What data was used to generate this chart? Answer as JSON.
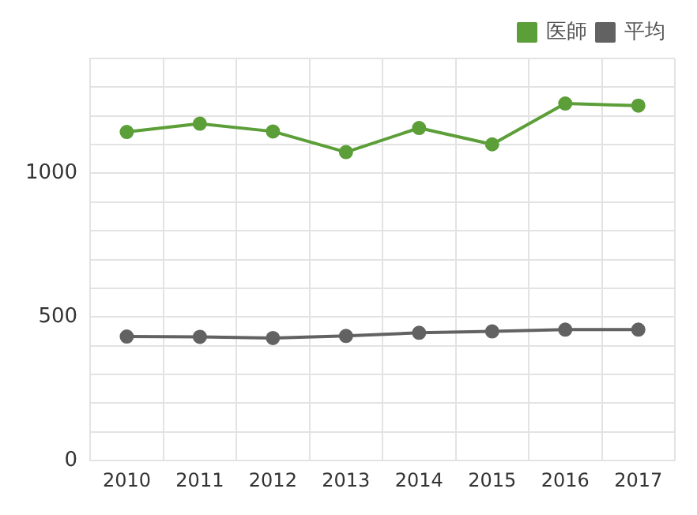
{
  "chart_data": {
    "type": "line",
    "categories": [
      "2010",
      "2011",
      "2012",
      "2013",
      "2014",
      "2015",
      "2016",
      "2017"
    ],
    "series": [
      {
        "name": "医師",
        "color": "#5c9e38",
        "values": [
          1144,
          1173,
          1146,
          1074,
          1158,
          1101,
          1243,
          1236
        ]
      },
      {
        "name": "平均",
        "color": "#626262",
        "values": [
          432,
          431,
          427,
          434,
          445,
          450,
          456,
          456
        ]
      }
    ],
    "ylim": [
      0,
      1400
    ],
    "yticks": [
      0,
      {
        "value": 100,
        "label": null
      },
      {
        "value": 200,
        "label": null
      },
      {
        "value": 300,
        "label": null
      },
      {
        "value": 400,
        "label": null
      },
      500,
      {
        "value": 600,
        "label": null
      },
      {
        "value": 700,
        "label": null
      },
      {
        "value": 800,
        "label": null
      },
      {
        "value": 900,
        "label": null
      },
      1000,
      {
        "value": 1100,
        "label": null
      },
      {
        "value": 1200,
        "label": null
      },
      {
        "value": 1300,
        "label": null
      },
      {
        "value": 1400,
        "label": null
      }
    ],
    "grid": true,
    "legend": "top right",
    "marker": "circle",
    "line_style": "solid"
  }
}
